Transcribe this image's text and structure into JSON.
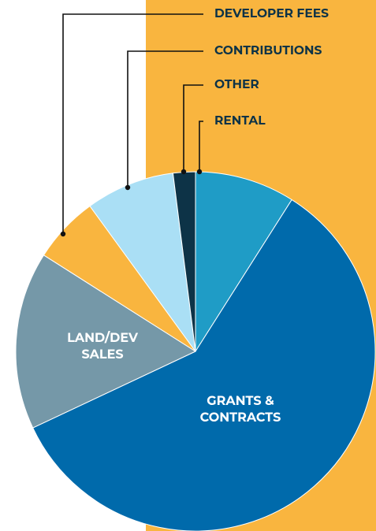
{
  "chart_data": {
    "type": "pie",
    "categories": [
      "RENTAL",
      "GRANTS & CONTRACTS",
      "LAND/DEV SALES",
      "DEVELOPER FEES",
      "CONTRIBUTIONS",
      "OTHER"
    ],
    "values": [
      9,
      59,
      16,
      6,
      8,
      2
    ],
    "colors": [
      "#1f9cc6",
      "#006aab",
      "#7598a8",
      "#f9b53f",
      "#aadff5",
      "#0d3347"
    ]
  }
}
